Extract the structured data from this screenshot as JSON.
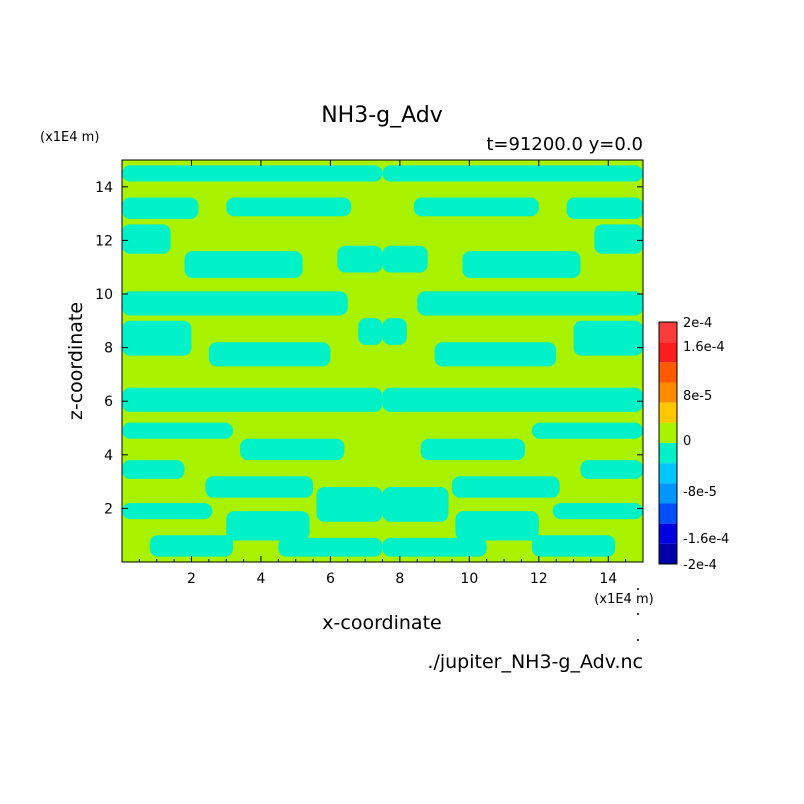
{
  "chart_data": {
    "type": "heatmap",
    "title": "NH3-g_Adv",
    "subtitle": "t=91200.0 y=0.0",
    "xlabel": "x-coordinate",
    "ylabel": "z-coordinate",
    "x_unit": "(x1E4 m)",
    "y_unit": "(x1E4 m)",
    "xlim": [
      0,
      15
    ],
    "ylim": [
      0,
      15
    ],
    "x_ticks": [
      "2",
      "4",
      "6",
      "8",
      "10",
      "12",
      "14"
    ],
    "y_ticks": [
      "2",
      "4",
      "6",
      "8",
      "10",
      "12",
      "14"
    ],
    "source_file": "./jupiter_NH3-g_Adv.nc",
    "field_values": [
      "positive (0 to 4e-5)",
      "negative (-4e-5 to 0)"
    ],
    "dominant_colors": {
      "positive": "#a8f200",
      "negative": "#00f0c8"
    },
    "colorbar": {
      "labels": [
        "2e-4",
        "1.6e-4",
        "8e-5",
        "0",
        "-8e-5",
        "-1.6e-4",
        "-2e-4"
      ],
      "levels_top_to_bottom": [
        "#ff3c3c",
        "#ff1e1e",
        "#ff5a00",
        "#ff8c00",
        "#ffc800",
        "#a8f200",
        "#00f0c8",
        "#00c8ff",
        "#0096ff",
        "#0050ff",
        "#0000e0",
        "#0000aa"
      ]
    }
  }
}
